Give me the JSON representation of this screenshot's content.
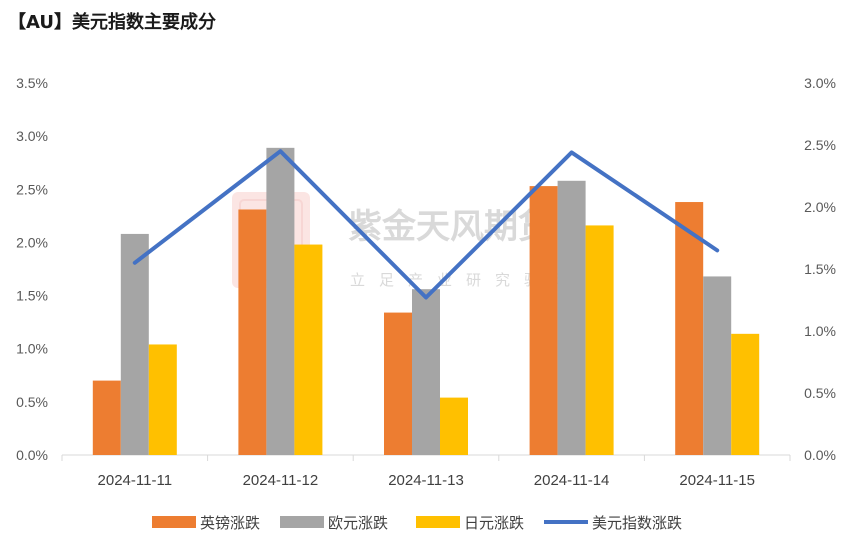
{
  "title": "【AU】美元指数主要成分",
  "watermark": {
    "name": "紫金天风期货",
    "tagline": "立足产业研究驱动",
    "logo_text": "紫金"
  },
  "colors": {
    "gbp": "#ED7D31",
    "eur": "#A5A5A5",
    "jpy": "#FFC000",
    "dxy": "#4472C4",
    "axis": "#D9D9D9"
  },
  "chart_data": {
    "type": "bar",
    "categories": [
      "2024-11-11",
      "2024-11-12",
      "2024-11-13",
      "2024-11-14",
      "2024-11-15"
    ],
    "series": [
      {
        "name": "英镑涨跌",
        "type": "bar",
        "axis": "left",
        "color": "#ED7D31",
        "values": [
          0.7,
          2.31,
          1.34,
          2.53,
          2.38
        ]
      },
      {
        "name": "欧元涨跌",
        "type": "bar",
        "axis": "left",
        "color": "#A5A5A5",
        "values": [
          2.08,
          2.89,
          1.56,
          2.58,
          1.68
        ]
      },
      {
        "name": "日元涨跌",
        "type": "bar",
        "axis": "left",
        "color": "#FFC000",
        "values": [
          1.04,
          1.98,
          0.54,
          2.16,
          1.14
        ]
      },
      {
        "name": "美元指数涨跌",
        "type": "line",
        "axis": "right",
        "color": "#4472C4",
        "values": [
          1.55,
          2.45,
          1.27,
          2.44,
          1.65
        ]
      }
    ],
    "ylim_left": [
      0,
      3.5
    ],
    "ylim_right": [
      0,
      3.0
    ],
    "yticks_left": [
      "0.0%",
      "0.5%",
      "1.0%",
      "1.5%",
      "2.0%",
      "2.5%",
      "3.0%",
      "3.5%"
    ],
    "yticks_right": [
      "0.0%",
      "0.5%",
      "1.0%",
      "1.5%",
      "2.0%",
      "2.5%",
      "3.0%"
    ],
    "grid": false,
    "legend": "bottom"
  }
}
